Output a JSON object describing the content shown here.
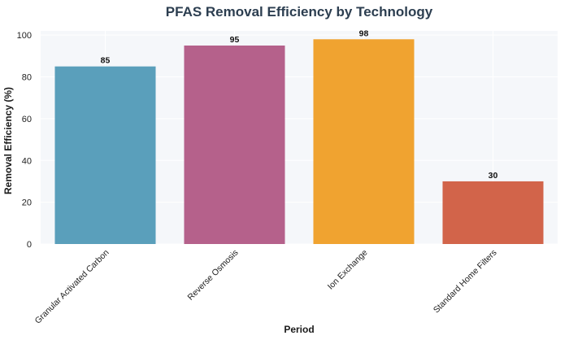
{
  "chart_data": {
    "type": "bar",
    "title": "PFAS Removal Efficiency by Technology",
    "xlabel": "Period",
    "ylabel": "Removal Efficiency (%)",
    "categories": [
      "Granular Activated Carbon",
      "Reverse Osmosis",
      "Ion Exchange",
      "Standard Home Filters"
    ],
    "values": [
      85,
      95,
      98,
      30
    ],
    "data_labels": [
      "85",
      "95",
      "98",
      "30"
    ],
    "colors": [
      "#5a9fbb",
      "#b5618b",
      "#f0a330",
      "#d2644a"
    ],
    "ylim": [
      0,
      102
    ],
    "yticks": [
      0,
      20,
      40,
      60,
      80,
      100
    ],
    "ytick_labels": [
      "0",
      "20",
      "40",
      "60",
      "80",
      "100"
    ],
    "grid": true,
    "plot_background": "#f5f7fa",
    "grid_color": "#ffffff",
    "title_color": "#2c3e50"
  }
}
